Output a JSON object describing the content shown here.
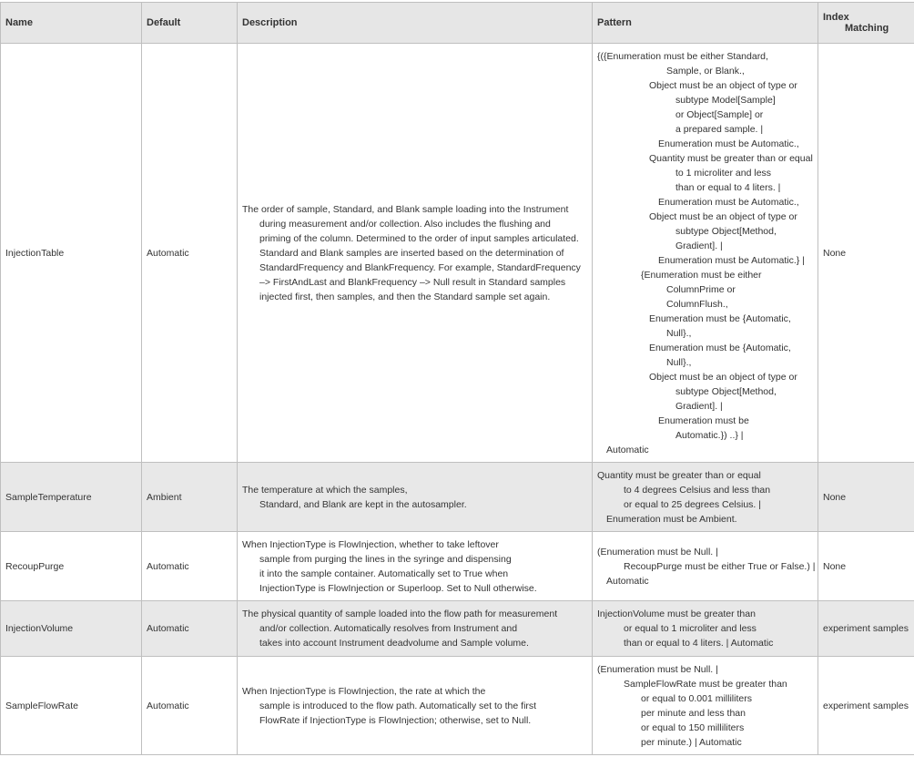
{
  "headers": {
    "name": "Name",
    "default": "Default",
    "description": "Description",
    "pattern": "Pattern",
    "index_matching_1": "Index",
    "index_matching_2": "Matching"
  },
  "rows": [
    {
      "name": "InjectionTable",
      "default": "Automatic",
      "description": [
        "The order of sample, Standard, and Blank sample loading into the Instrument",
        "during measurement and/or collection. Also includes the flushing and",
        "priming of the column.  Determined to the order of input samples articulated.",
        "Standard and Blank samples are inserted based on the determination of",
        "StandardFrequency and BlankFrequency. For example, StandardFrequency",
        "–> FirstAndLast and BlankFrequency –> Null result in Standard samples",
        "injected first, then samples, and then the Standard sample set again."
      ],
      "pattern": [
        "{({Enumeration must be either Standard,",
        "Sample, or Blank.,",
        "Object must be an object of type or",
        "subtype Model[Sample]",
        "or Object[Sample] or",
        "a prepared sample. |",
        "Enumeration must be Automatic.,",
        "Quantity must be greater than or equal",
        "to 1 microliter and less",
        "than or equal to 4 liters. |",
        "Enumeration must be Automatic.,",
        "Object must be an object of type or",
        "subtype Object[Method,",
        "Gradient]. |",
        "Enumeration must be Automatic.} |",
        "{Enumeration must be either",
        "ColumnPrime or",
        "ColumnFlush.,",
        "Enumeration must be {Automatic,",
        "Null}.,",
        "Enumeration must be {Automatic,",
        "Null}.,",
        "Object must be an object of type or",
        "subtype Object[Method,",
        "Gradient]. |",
        "Enumeration must be",
        "Automatic.}) ..} |",
        "Automatic"
      ],
      "index_matching": "None"
    },
    {
      "name": "SampleTemperature",
      "default": "Ambient",
      "description": [
        "The temperature at which the samples,",
        "Standard, and Blank are kept in the autosampler."
      ],
      "pattern": [
        "Quantity must be greater than or equal",
        "to 4 degrees Celsius and less than",
        "or equal to 25 degrees Celsius. |",
        "Enumeration must be Ambient."
      ],
      "index_matching": "None"
    },
    {
      "name": "RecoupPurge",
      "default": "Automatic",
      "description": [
        "When InjectionType is FlowInjection, whether to take leftover",
        "sample from purging the lines in the syringe and dispensing",
        "it into the sample container.  Automatically set to True when",
        "InjectionType is FlowInjection or Superloop. Set to Null otherwise."
      ],
      "pattern": [
        "(Enumeration must be Null. |",
        "RecoupPurge must be either True or False.) |",
        "Automatic"
      ],
      "index_matching": "None"
    },
    {
      "name": "InjectionVolume",
      "default": "Automatic",
      "description": [
        "The physical quantity of sample loaded into the flow path for measurement",
        "and/or collection.  Automatically resolves from Instrument and",
        "takes into account Instrument deadvolume and Sample volume."
      ],
      "pattern": [
        "InjectionVolume must be greater than",
        "or equal to 1 microliter and less",
        "than or equal to 4 liters. | Automatic"
      ],
      "index_matching": "experiment samples"
    },
    {
      "name": "SampleFlowRate",
      "default": "Automatic",
      "description": [
        "When InjectionType is FlowInjection, the rate at which the",
        "sample is introduced to the flow path.  Automatically set to the first",
        "FlowRate if InjectionType is FlowInjection; otherwise, set to Null."
      ],
      "pattern": [
        "(Enumeration must be Null. |",
        "SampleFlowRate must be greater than",
        "or equal to 0.001 milliliters",
        "per minute and less than",
        "or equal to 150 milliliters",
        "per minute.) | Automatic"
      ],
      "index_matching": "experiment samples"
    }
  ]
}
